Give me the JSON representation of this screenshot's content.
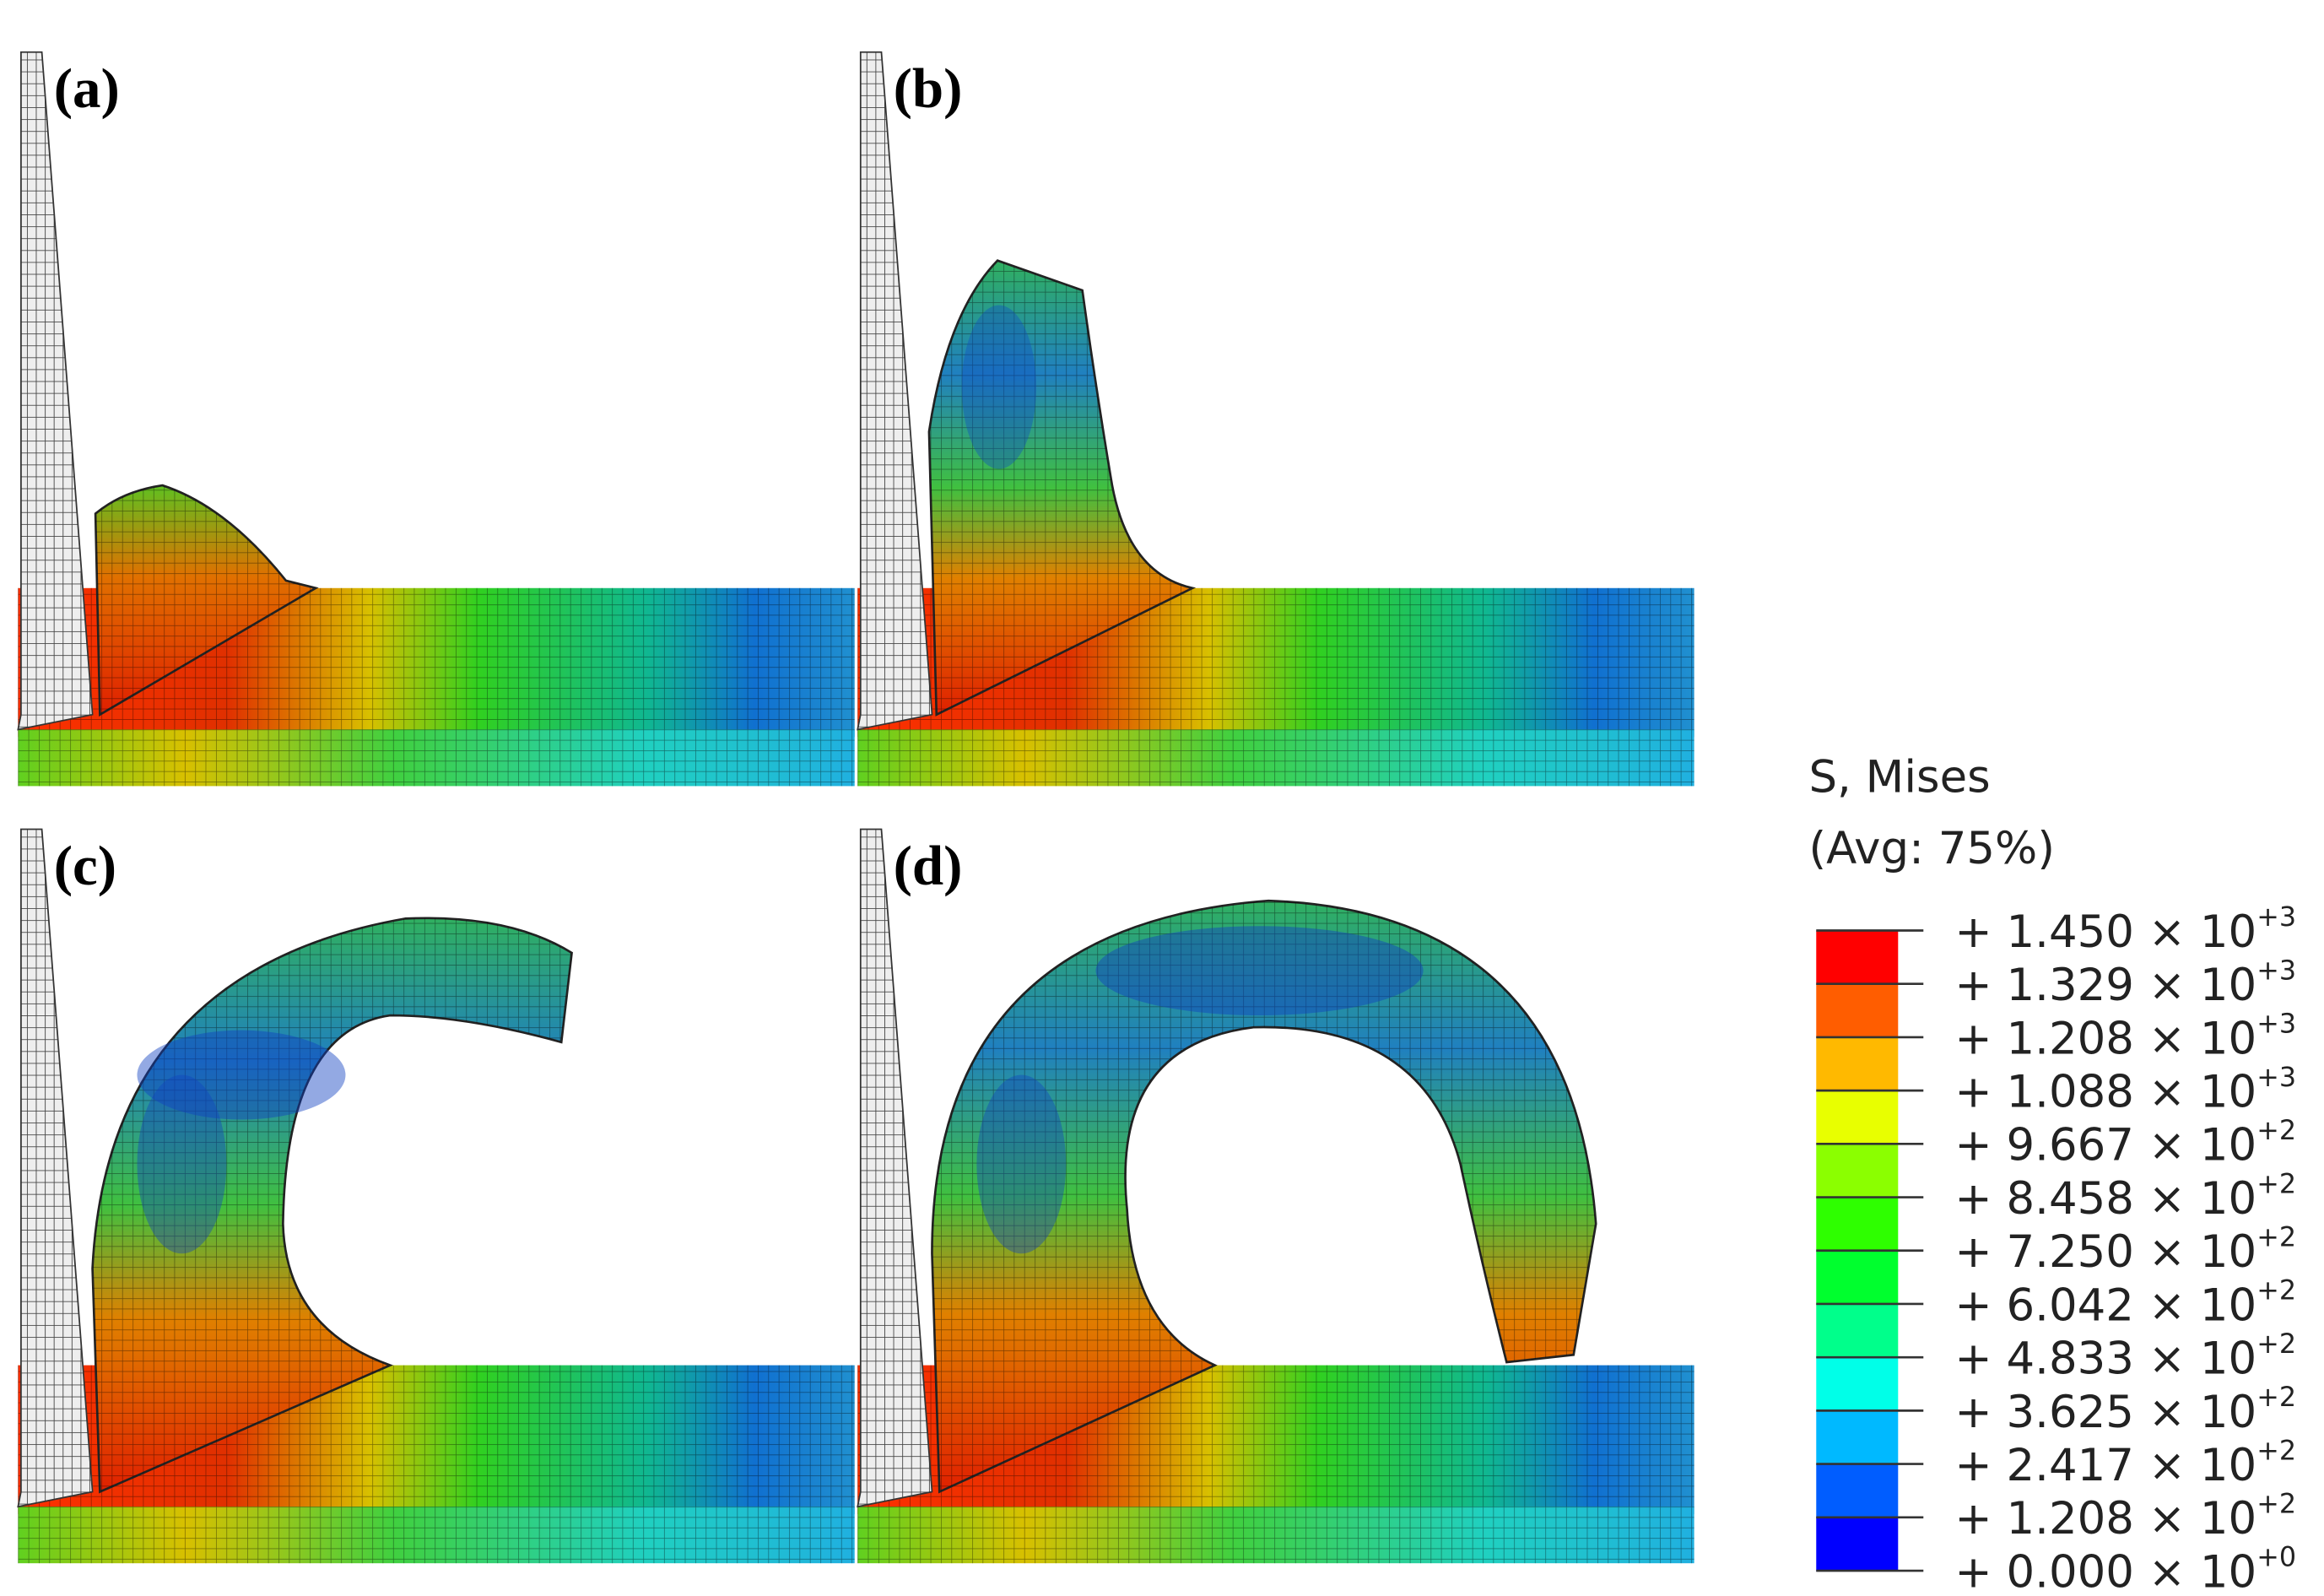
{
  "panels": [
    {
      "label": "(a)"
    },
    {
      "label": "(b)"
    },
    {
      "label": "(c)"
    },
    {
      "label": "(d)"
    }
  ],
  "legend": {
    "title": "S, Mises",
    "subtitle": "(Avg: 75%)",
    "entries": [
      {
        "text": "+ 1.450 × 10",
        "exponent": "+3"
      },
      {
        "text": "+ 1.329 × 10",
        "exponent": "+3"
      },
      {
        "text": "+ 1.208 × 10",
        "exponent": "+3"
      },
      {
        "text": "+ 1.088 × 10",
        "exponent": "+3"
      },
      {
        "text": "+ 9.667 × 10",
        "exponent": "+2"
      },
      {
        "text": "+ 8.458 × 10",
        "exponent": "+2"
      },
      {
        "text": "+ 7.250 × 10",
        "exponent": "+2"
      },
      {
        "text": "+ 6.042 × 10",
        "exponent": "+2"
      },
      {
        "text": "+ 4.833 × 10",
        "exponent": "+2"
      },
      {
        "text": "+ 3.625 × 10",
        "exponent": "+2"
      },
      {
        "text": "+ 2.417 × 10",
        "exponent": "+2"
      },
      {
        "text": "+ 1.208 × 10",
        "exponent": "+2"
      },
      {
        "text": "+ 0.000 × 10",
        "exponent": "+0"
      }
    ],
    "colors": [
      "#ff0000",
      "#ff5d00",
      "#ffb900",
      "#e8ff00",
      "#8bff00",
      "#2eff00",
      "#00ff2e",
      "#00ff8b",
      "#00ffe8",
      "#00b9ff",
      "#005dff",
      "#0000ff"
    ]
  }
}
